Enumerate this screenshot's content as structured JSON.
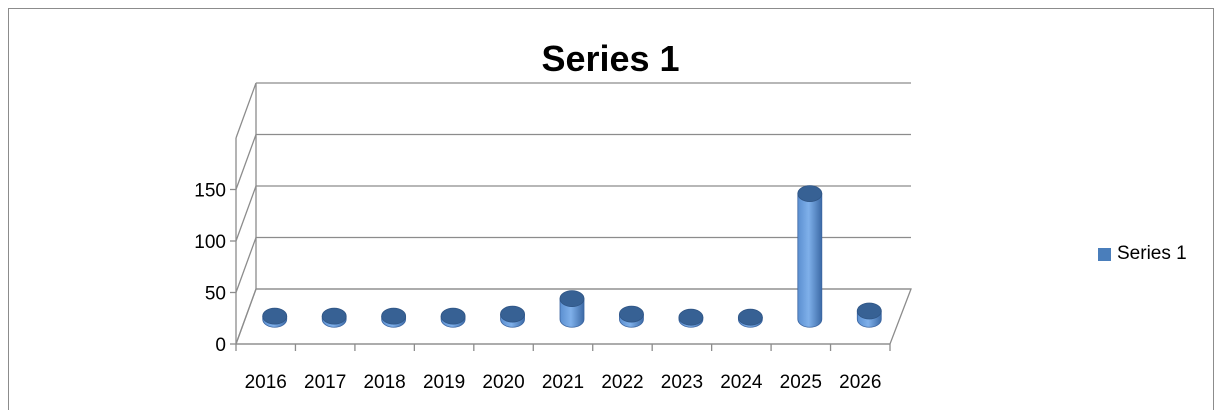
{
  "chart_data": {
    "type": "bar",
    "subtype": "3d-cylinder",
    "title": "Series 1",
    "categories": [
      "2016",
      "2017",
      "2018",
      "2019",
      "2020",
      "2021",
      "2022",
      "2023",
      "2024",
      "2025",
      "2026"
    ],
    "series": [
      {
        "name": "Series 1",
        "values": [
          3,
          3,
          3,
          3,
          5,
          20,
          5,
          2,
          2,
          122,
          8
        ],
        "color": "#4a7ebb"
      }
    ],
    "yticks": [
      "0",
      "50",
      "100",
      "150"
    ],
    "ylim": [
      0,
      200
    ],
    "grid": true,
    "legend": "right"
  }
}
